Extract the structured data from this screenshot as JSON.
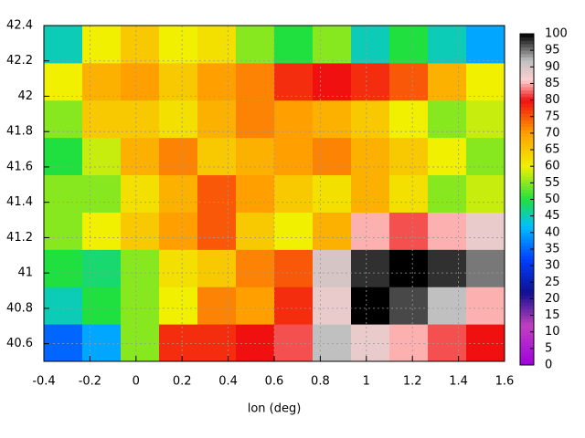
{
  "chart_data": {
    "type": "heatmap",
    "xlabel": "lon (deg)",
    "xlim": [
      -0.4,
      1.6
    ],
    "xticks": [
      -0.4,
      -0.2,
      0,
      0.2,
      0.4,
      0.6,
      0.8,
      1,
      1.2,
      1.4,
      1.6
    ],
    "ylim": [
      40.5,
      42.4
    ],
    "yticks": [
      40.6,
      40.8,
      41,
      41.2,
      41.4,
      41.6,
      41.8,
      42,
      42.2,
      42.4
    ],
    "zlim": [
      0,
      100
    ],
    "zticks": [
      0,
      5,
      10,
      15,
      20,
      25,
      30,
      35,
      40,
      45,
      50,
      55,
      60,
      65,
      70,
      75,
      80,
      85,
      90,
      95,
      100
    ],
    "grid": true,
    "colormap": [
      [
        0,
        "#a000e0"
      ],
      [
        12,
        "#c040c0"
      ],
      [
        22,
        "#101090"
      ],
      [
        32,
        "#0040ff"
      ],
      [
        42,
        "#00c0ff"
      ],
      [
        50,
        "#20e040"
      ],
      [
        60,
        "#f0f000"
      ],
      [
        70,
        "#ffa000"
      ],
      [
        80,
        "#f01010"
      ],
      [
        86,
        "#ffd0d0"
      ],
      [
        92,
        "#c0c0c0"
      ],
      [
        100,
        "#000000"
      ]
    ],
    "z": [
      [
        35,
        40,
        55,
        78,
        78,
        80,
        82,
        92,
        88,
        85,
        82,
        80
      ],
      [
        45,
        50,
        55,
        60,
        72,
        70,
        78,
        88,
        100,
        97,
        92,
        85
      ],
      [
        50,
        48,
        55,
        62,
        65,
        72,
        75,
        90,
        98,
        100,
        98,
        95
      ],
      [
        55,
        60,
        65,
        70,
        75,
        65,
        60,
        68,
        85,
        82,
        85,
        88
      ],
      [
        55,
        55,
        62,
        68,
        75,
        70,
        65,
        62,
        68,
        62,
        55,
        58
      ],
      [
        50,
        58,
        68,
        72,
        65,
        68,
        70,
        72,
        68,
        65,
        60,
        55
      ],
      [
        55,
        65,
        65,
        62,
        68,
        72,
        70,
        68,
        65,
        60,
        55,
        58
      ],
      [
        60,
        68,
        70,
        65,
        70,
        72,
        78,
        80,
        78,
        75,
        68,
        60
      ],
      [
        45,
        60,
        65,
        60,
        62,
        55,
        50,
        55,
        45,
        50,
        45,
        40
      ]
    ]
  }
}
